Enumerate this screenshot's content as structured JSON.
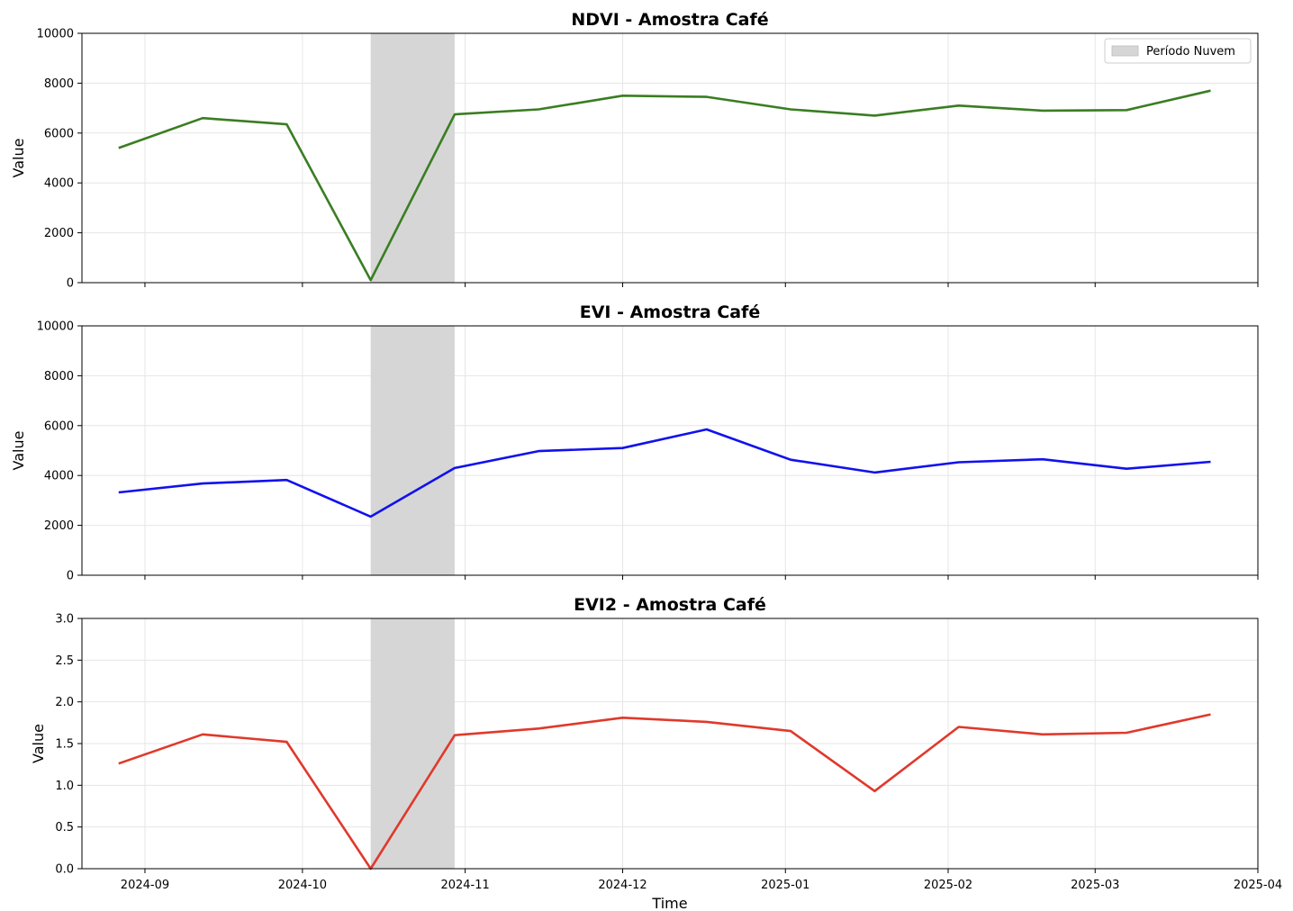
{
  "chart_data": [
    {
      "type": "line",
      "title": "NDVI - Amostra Café",
      "xlabel": "",
      "ylabel": "Value",
      "ylim": [
        0,
        10000
      ],
      "yticks": [
        0,
        2000,
        4000,
        6000,
        8000,
        10000
      ],
      "xticklabels_visible": false,
      "grid": true,
      "color": "#3a7d22",
      "x": [
        "2024-08-27",
        "2024-09-12",
        "2024-09-28",
        "2024-10-14",
        "2024-10-30",
        "2024-11-15",
        "2024-12-01",
        "2024-12-17",
        "2025-01-02",
        "2025-01-18",
        "2025-02-03",
        "2025-02-19",
        "2025-03-07",
        "2025-03-23"
      ],
      "values": [
        5400,
        6600,
        6350,
        100,
        6750,
        6950,
        7500,
        7450,
        6950,
        6700,
        7100,
        6900,
        6920,
        7700
      ],
      "shaded_region": {
        "start": "2024-10-14",
        "end": "2024-10-30",
        "label": "Período Nuvem"
      },
      "legend": {
        "position": "top-right",
        "entries": [
          "Período Nuvem"
        ]
      }
    },
    {
      "type": "line",
      "title": "EVI - Amostra Café",
      "xlabel": "",
      "ylabel": "Value",
      "ylim": [
        0,
        10000
      ],
      "yticks": [
        0,
        2000,
        4000,
        6000,
        8000,
        10000
      ],
      "xticklabels_visible": false,
      "grid": true,
      "color": "#1111ee",
      "x": [
        "2024-08-27",
        "2024-09-12",
        "2024-09-28",
        "2024-10-14",
        "2024-10-30",
        "2024-11-15",
        "2024-12-01",
        "2024-12-17",
        "2025-01-02",
        "2025-01-18",
        "2025-02-03",
        "2025-02-19",
        "2025-03-07",
        "2025-03-23"
      ],
      "values": [
        3320,
        3680,
        3820,
        2350,
        4300,
        4980,
        5100,
        5850,
        4630,
        4120,
        4530,
        4650,
        4270,
        4550
      ],
      "shaded_region": {
        "start": "2024-10-14",
        "end": "2024-10-30"
      }
    },
    {
      "type": "line",
      "title": "EVI2 - Amostra Café",
      "xlabel": "Time",
      "ylabel": "Value",
      "ylim": [
        0,
        3.0
      ],
      "yticks": [
        0.0,
        0.5,
        1.0,
        1.5,
        2.0,
        2.5,
        3.0
      ],
      "xticklabels_visible": true,
      "grid": true,
      "color": "#e0392b",
      "x": [
        "2024-08-27",
        "2024-09-12",
        "2024-09-28",
        "2024-10-14",
        "2024-10-30",
        "2024-11-15",
        "2024-12-01",
        "2024-12-17",
        "2025-01-02",
        "2025-01-18",
        "2025-02-03",
        "2025-02-19",
        "2025-03-07",
        "2025-03-23"
      ],
      "values": [
        1.26,
        1.61,
        1.52,
        0.0,
        1.6,
        1.68,
        1.81,
        1.76,
        1.65,
        0.93,
        1.7,
        1.61,
        1.63,
        1.85
      ],
      "shaded_region": {
        "start": "2024-10-14",
        "end": "2024-10-30"
      }
    }
  ],
  "xaxis": {
    "xlim": [
      "2024-08-20",
      "2025-04-01"
    ],
    "ticks": [
      {
        "date": "2024-09-01",
        "label": "2024-09"
      },
      {
        "date": "2024-10-01",
        "label": "2024-10"
      },
      {
        "date": "2024-11-01",
        "label": "2024-11"
      },
      {
        "date": "2024-12-01",
        "label": "2024-12"
      },
      {
        "date": "2025-01-01",
        "label": "2025-01"
      },
      {
        "date": "2025-02-01",
        "label": "2025-02"
      },
      {
        "date": "2025-03-01",
        "label": "2025-03"
      },
      {
        "date": "2025-04-01",
        "label": "2025-04"
      }
    ]
  },
  "colors": {
    "shade": "#d6d6d6",
    "grid": "#e6e6e6",
    "axis": "#000000"
  }
}
